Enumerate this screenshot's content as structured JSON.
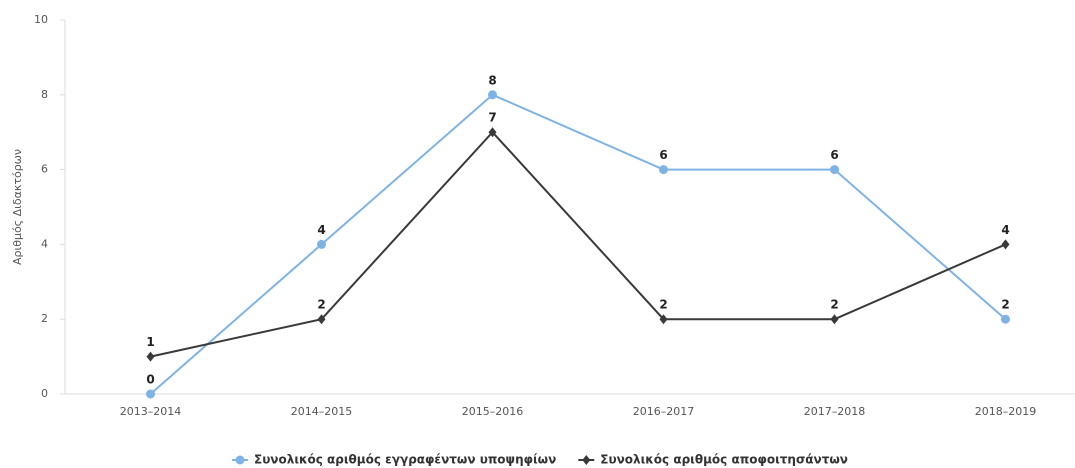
{
  "chart_data": {
    "type": "line",
    "categories": [
      "2013–2014",
      "2014–2015",
      "2015–2016",
      "2016–2017",
      "2017–2018",
      "2018–2019"
    ],
    "series": [
      {
        "name": "Συνολικός αριθμός εγγραφέντων υποψηφίων",
        "color": "#7fb3e6",
        "marker": "circle",
        "values": [
          0,
          4,
          8,
          6,
          6,
          2
        ]
      },
      {
        "name": "Συνολικός αριθμός αποφοιτησάντων",
        "color": "#3a3a3a",
        "marker": "diamond",
        "values": [
          1,
          2,
          7,
          2,
          2,
          4
        ]
      }
    ],
    "y_label": "Αριθμός Διδακτόρων",
    "ylim": [
      0,
      10
    ],
    "yticks": [
      0,
      2,
      4,
      6,
      8,
      10
    ],
    "grid": false,
    "legend": "bottom"
  }
}
